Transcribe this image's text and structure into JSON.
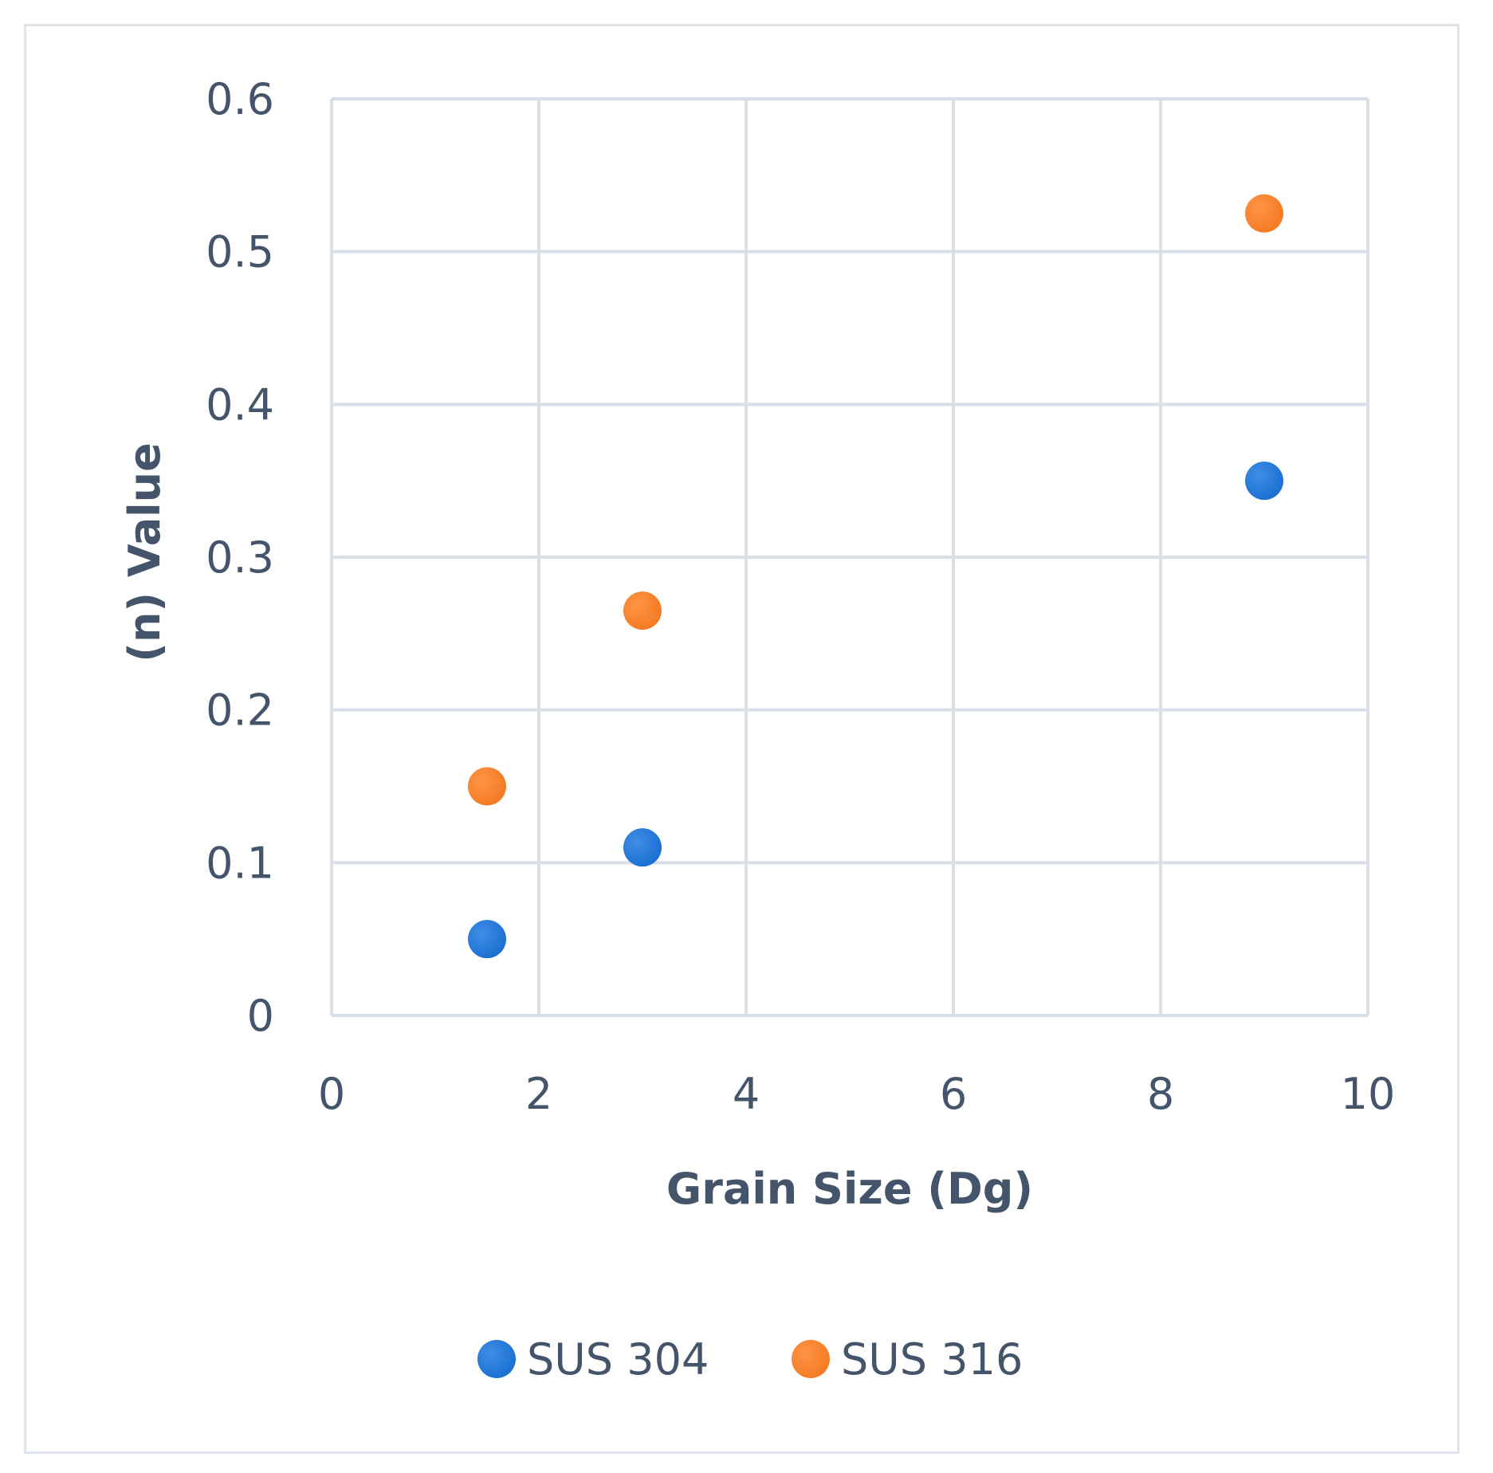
{
  "chart_data": {
    "type": "scatter",
    "title": "",
    "xlabel": "Grain Size (Dg)",
    "ylabel": "(n) Value",
    "xlim": [
      0,
      10
    ],
    "ylim": [
      0,
      0.6
    ],
    "xticks": [
      0,
      2,
      4,
      6,
      8,
      10
    ],
    "yticks": [
      0,
      0.1,
      0.2,
      0.3,
      0.4,
      0.5,
      0.6
    ],
    "xtick_labels": [
      "0",
      "2",
      "4",
      "6",
      "8",
      "10"
    ],
    "ytick_labels": [
      "0",
      "0.1",
      "0.2",
      "0.3",
      "0.4",
      "0.5",
      "0.6"
    ],
    "grid": true,
    "legend_position": "bottom",
    "series": [
      {
        "name": "SUS 304",
        "color": "#1a6fd1",
        "x": [
          1.5,
          3,
          9
        ],
        "y": [
          0.05,
          0.11,
          0.35
        ]
      },
      {
        "name": "SUS 316",
        "color": "#f47a23",
        "x": [
          1.5,
          3,
          9
        ],
        "y": [
          0.15,
          0.265,
          0.525
        ]
      }
    ]
  }
}
